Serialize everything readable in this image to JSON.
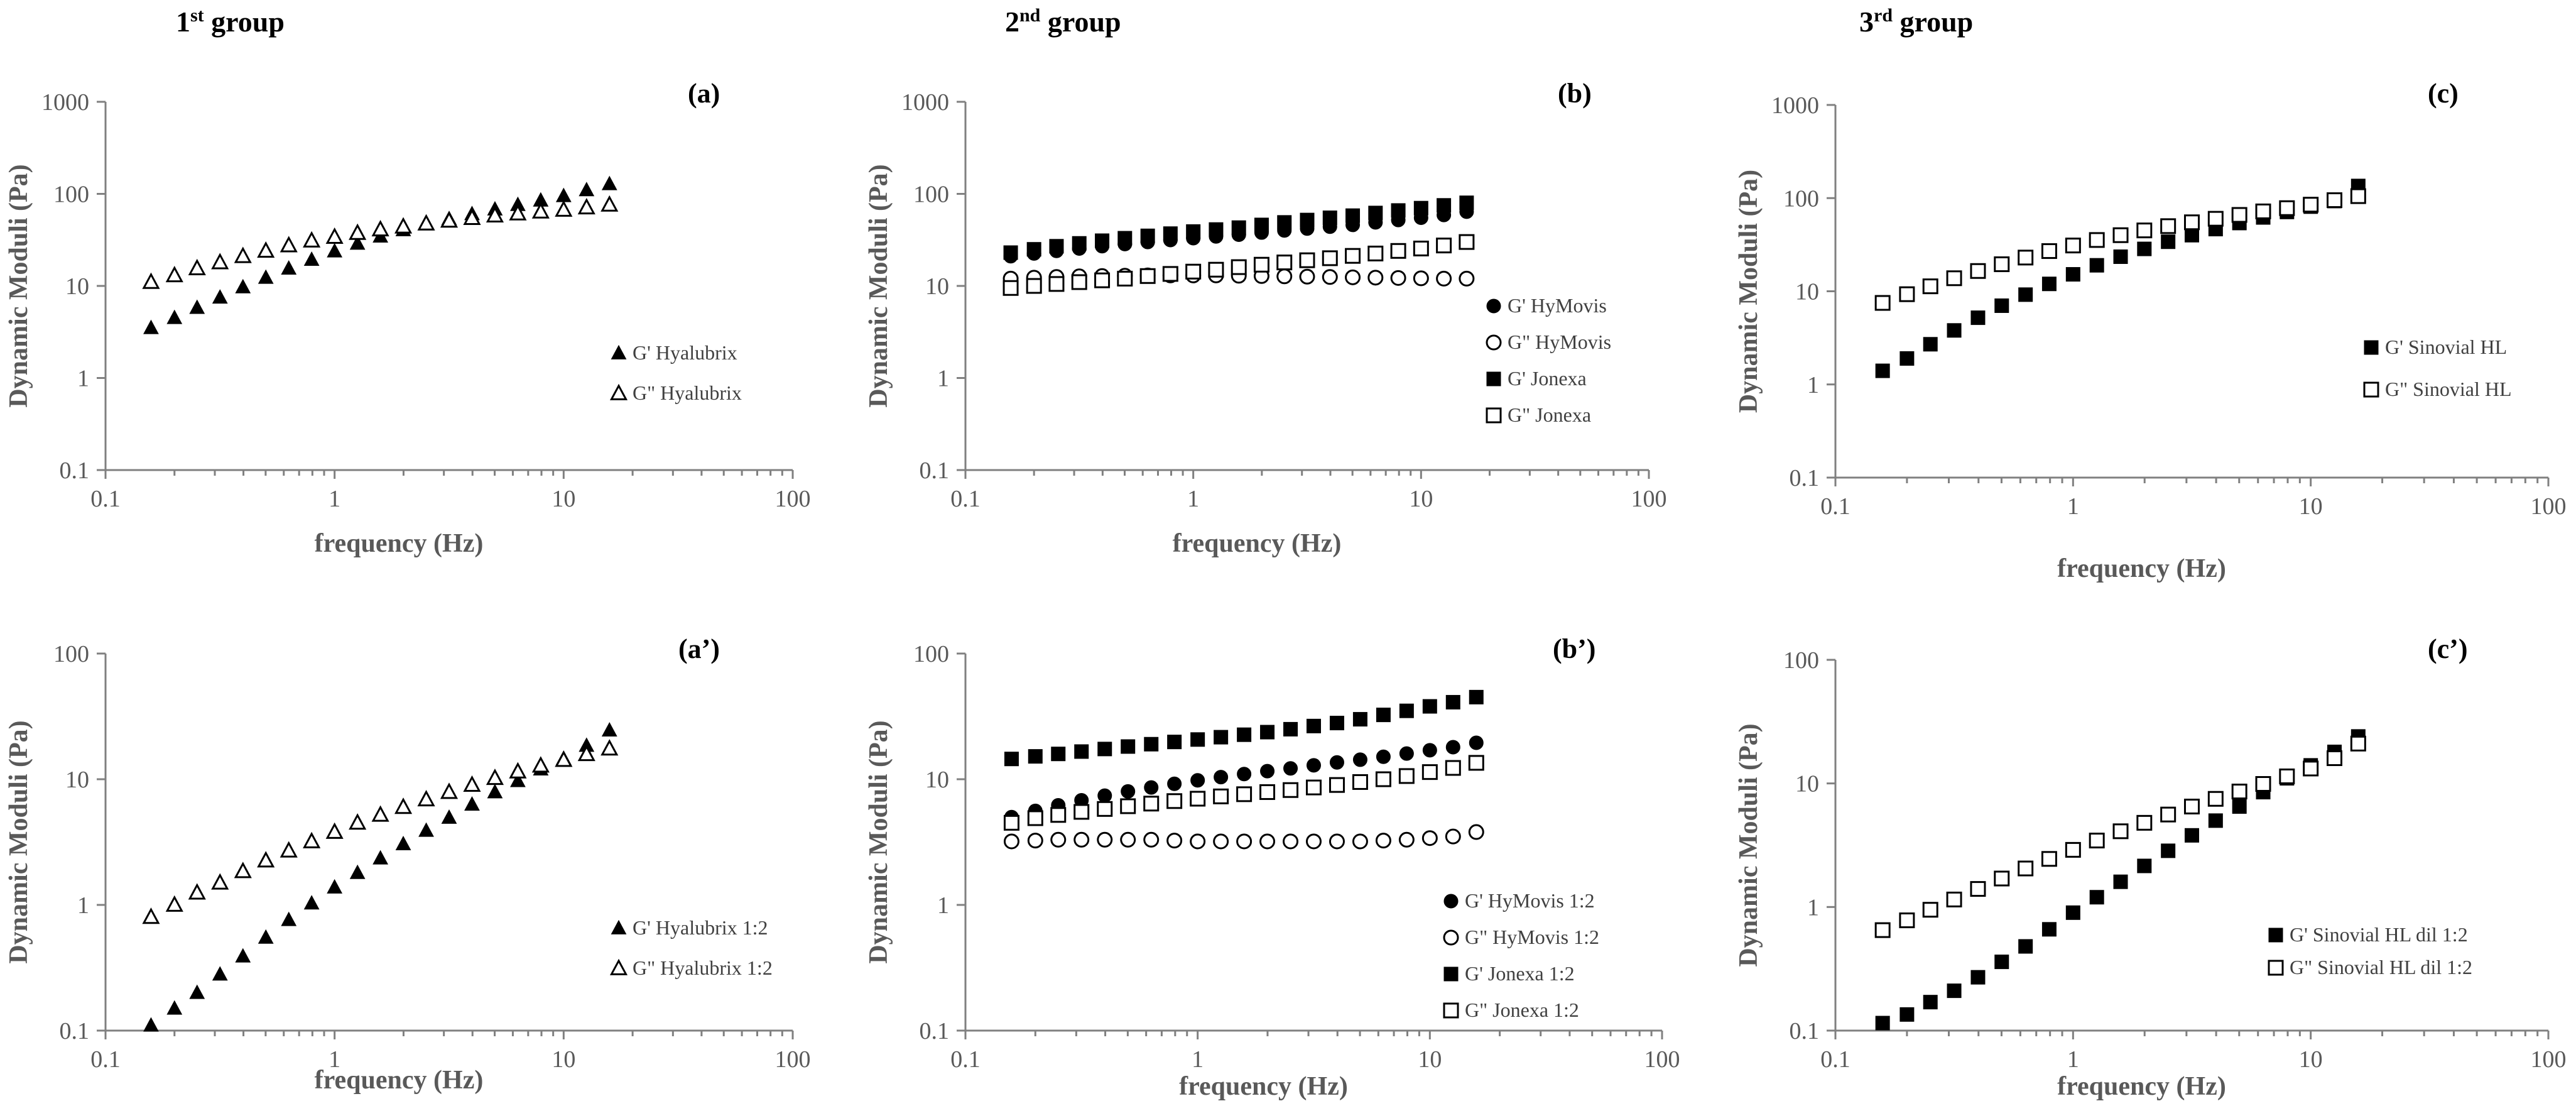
{
  "group_titles": [
    {
      "base": "1",
      "sup": "st",
      "rest": " group"
    },
    {
      "base": "2",
      "sup": "nd",
      "rest": " group"
    },
    {
      "base": "3",
      "sup": "rd",
      "rest": " group"
    }
  ],
  "chart_data": [
    {
      "type": "scatter",
      "panel_label": "(a)",
      "xlabel": "frequency (Hz)",
      "ylabel": "Dynamic Moduli (Pa)",
      "xscale": "log",
      "yscale": "log",
      "xlim": [
        0.1,
        100
      ],
      "ylim": [
        0.1,
        1000
      ],
      "xticks": [
        "0.1",
        "1",
        "10",
        "100"
      ],
      "yticks": [
        "0.1",
        "1",
        "10",
        "100",
        "1000"
      ],
      "legend_position": "right-middle",
      "x": [
        0.158,
        0.2,
        0.251,
        0.316,
        0.398,
        0.501,
        0.631,
        0.794,
        1.0,
        1.259,
        1.585,
        1.995,
        2.512,
        3.162,
        3.981,
        5.012,
        6.31,
        7.943,
        10.0,
        12.589,
        15.849
      ],
      "series": [
        {
          "name": "G' Hyalubrix",
          "marker": "triangle-filled",
          "values": [
            3.5,
            4.5,
            5.8,
            7.5,
            9.7,
            12.3,
            15.5,
            19.3,
            23.8,
            28.9,
            34.5,
            40.5,
            46.8,
            53.5,
            60.5,
            68,
            76,
            85,
            95,
            110,
            128
          ]
        },
        {
          "name": "G\" Hyalubrix",
          "marker": "triangle-open",
          "values": [
            11,
            13,
            15.5,
            18,
            21,
            24,
            27.5,
            31,
            34,
            37.5,
            41,
            44,
            47.5,
            51,
            54.5,
            58,
            61,
            64,
            67,
            71,
            76
          ]
        }
      ]
    },
    {
      "type": "scatter",
      "panel_label": "(b)",
      "xlabel": "frequency (Hz)",
      "ylabel": "Dynamic Moduli (Pa)",
      "xscale": "log",
      "yscale": "log",
      "xlim": [
        0.1,
        100
      ],
      "ylim": [
        0.1,
        1000
      ],
      "xticks": [
        "0.1",
        "1",
        "10",
        "100"
      ],
      "yticks": [
        "0.1",
        "1",
        "10",
        "100",
        "1000"
      ],
      "legend_position": "right-bottom",
      "x": [
        0.158,
        0.2,
        0.251,
        0.316,
        0.398,
        0.501,
        0.631,
        0.794,
        1.0,
        1.259,
        1.585,
        1.995,
        2.512,
        3.162,
        3.981,
        5.012,
        6.31,
        7.943,
        10.0,
        12.589,
        15.849
      ],
      "series": [
        {
          "name": "G' HyMovis",
          "marker": "circle-filled",
          "values": [
            21,
            22.5,
            24,
            25.5,
            27,
            28.5,
            30,
            31.5,
            33,
            34.5,
            36,
            38,
            40,
            42,
            44,
            46,
            49,
            52,
            55,
            59,
            64
          ]
        },
        {
          "name": "G\" HyMovis",
          "marker": "circle-open",
          "values": [
            12,
            12.3,
            12.5,
            12.7,
            12.8,
            12.9,
            13,
            13,
            13,
            13,
            12.9,
            12.8,
            12.7,
            12.6,
            12.5,
            12.4,
            12.3,
            12.2,
            12.1,
            12,
            12
          ]
        },
        {
          "name": "G' Jonexa",
          "marker": "square-filled",
          "values": [
            23,
            25,
            27,
            29,
            31,
            33,
            35,
            37,
            39,
            41,
            43,
            46,
            49,
            52,
            55,
            58,
            62,
            66,
            70,
            75,
            80
          ]
        },
        {
          "name": "G\" Jonexa",
          "marker": "square-open",
          "values": [
            9.5,
            10,
            10.5,
            11,
            11.5,
            12,
            12.8,
            13.5,
            14.3,
            15,
            16,
            17,
            18,
            19,
            20,
            21.2,
            22.5,
            24,
            25.5,
            27.5,
            30
          ]
        }
      ]
    },
    {
      "type": "scatter",
      "panel_label": "(c)",
      "xlabel": "frequency (Hz)",
      "ylabel": "Dynamic Moduli (Pa)",
      "xscale": "log",
      "yscale": "log",
      "xlim": [
        0.1,
        100
      ],
      "ylim": [
        0.1,
        1000
      ],
      "xticks": [
        "0.1",
        "1",
        "10",
        "100"
      ],
      "yticks": [
        "0.1",
        "1",
        "10",
        "100",
        "1000"
      ],
      "legend_position": "right-middle",
      "x": [
        0.158,
        0.2,
        0.251,
        0.316,
        0.398,
        0.501,
        0.631,
        0.794,
        1.0,
        1.259,
        1.585,
        1.995,
        2.512,
        3.162,
        3.981,
        5.012,
        6.31,
        7.943,
        10.0,
        12.589,
        15.849
      ],
      "series": [
        {
          "name": "G' Sinovial HL",
          "marker": "square-filled",
          "values": [
            1.4,
            1.9,
            2.7,
            3.8,
            5.2,
            7,
            9.2,
            12,
            15.2,
            19,
            23.5,
            28.5,
            34,
            40,
            46.5,
            54,
            62,
            71,
            81,
            93,
            135
          ]
        },
        {
          "name": "G\" Sinovial HL",
          "marker": "square-open",
          "values": [
            7.5,
            9.3,
            11.3,
            13.8,
            16.5,
            19.5,
            23,
            27,
            31,
            35.5,
            40,
            45,
            50,
            55,
            60,
            66,
            72,
            78,
            85,
            95,
            105
          ]
        }
      ]
    },
    {
      "type": "scatter",
      "panel_label": "(a’)",
      "xlabel": "frequency (Hz)",
      "ylabel": "Dynamic Moduli (Pa)",
      "xscale": "log",
      "yscale": "log",
      "xlim": [
        0.1,
        100
      ],
      "ylim": [
        0.1,
        100
      ],
      "xticks": [
        "0.1",
        "1",
        "10",
        "100"
      ],
      "yticks": [
        "0.1",
        "1",
        "10",
        "100"
      ],
      "legend_position": "right-bottom",
      "x": [
        0.158,
        0.2,
        0.251,
        0.316,
        0.398,
        0.501,
        0.631,
        0.794,
        1.0,
        1.259,
        1.585,
        1.995,
        2.512,
        3.162,
        3.981,
        5.012,
        6.31,
        7.943,
        10.0,
        12.589,
        15.849
      ],
      "series": [
        {
          "name": "G' Hyalubrix 1:2",
          "marker": "triangle-filled",
          "values": [
            0.11,
            0.15,
            0.2,
            0.28,
            0.39,
            0.55,
            0.76,
            1.03,
            1.38,
            1.8,
            2.35,
            3.05,
            3.9,
            4.95,
            6.3,
            7.9,
            9.7,
            12,
            14.6,
            18.5,
            24.5
          ]
        },
        {
          "name": "G\" Hyalubrix 1:2",
          "marker": "triangle-open",
          "values": [
            0.8,
            1.0,
            1.25,
            1.5,
            1.85,
            2.25,
            2.7,
            3.2,
            3.8,
            4.5,
            5.2,
            6.0,
            6.9,
            7.9,
            9.0,
            10.2,
            11.5,
            12.8,
            14.2,
            15.8,
            17.5
          ]
        }
      ]
    },
    {
      "type": "scatter",
      "panel_label": "(b’)",
      "xlabel": "frequency (Hz)",
      "ylabel": "Dynamic Moduli (Pa)",
      "xscale": "log",
      "yscale": "log",
      "xlim": [
        0.1,
        100
      ],
      "ylim": [
        0.1,
        100
      ],
      "xticks": [
        "0.1",
        "1",
        "10",
        "100"
      ],
      "yticks": [
        "0.1",
        "1",
        "10",
        "100"
      ],
      "legend_position": "right-bottom",
      "x": [
        0.158,
        0.2,
        0.251,
        0.316,
        0.398,
        0.501,
        0.631,
        0.794,
        1.0,
        1.259,
        1.585,
        1.995,
        2.512,
        3.162,
        3.981,
        5.012,
        6.31,
        7.943,
        10.0,
        12.589,
        15.849
      ],
      "series": [
        {
          "name": "G' HyMovis 1:2",
          "marker": "circle-filled",
          "values": [
            5,
            5.6,
            6.2,
            6.8,
            7.4,
            8,
            8.6,
            9.2,
            9.8,
            10.4,
            11,
            11.6,
            12.2,
            12.9,
            13.6,
            14.3,
            15.1,
            16,
            17,
            18,
            19.5
          ]
        },
        {
          "name": "G\" HyMovis 1:2",
          "marker": "circle-open",
          "values": [
            3.2,
            3.25,
            3.3,
            3.3,
            3.3,
            3.3,
            3.3,
            3.25,
            3.2,
            3.2,
            3.2,
            3.2,
            3.2,
            3.2,
            3.2,
            3.2,
            3.25,
            3.3,
            3.4,
            3.5,
            3.8
          ]
        },
        {
          "name": "G' Jonexa 1:2",
          "marker": "square-filled",
          "values": [
            14.5,
            15.2,
            15.9,
            16.6,
            17.4,
            18.2,
            19,
            19.8,
            20.7,
            21.6,
            22.6,
            23.7,
            25,
            26.5,
            28,
            30,
            32.5,
            35,
            38,
            41,
            45
          ]
        },
        {
          "name": "G\" Jonexa 1:2",
          "marker": "square-open",
          "values": [
            4.5,
            4.9,
            5.2,
            5.5,
            5.8,
            6.1,
            6.4,
            6.7,
            7,
            7.3,
            7.6,
            7.9,
            8.2,
            8.6,
            9,
            9.5,
            10,
            10.6,
            11.4,
            12.3,
            13.5
          ]
        }
      ]
    },
    {
      "type": "scatter",
      "panel_label": "(c’)",
      "xlabel": "frequency (Hz)",
      "ylabel": "Dynamic Moduli (Pa)",
      "xscale": "log",
      "yscale": "log",
      "xlim": [
        0.1,
        100
      ],
      "ylim": [
        0.1,
        100
      ],
      "xticks": [
        "0.1",
        "1",
        "10",
        "100"
      ],
      "yticks": [
        "0.1",
        "1",
        "10",
        "100"
      ],
      "legend_position": "right-bottom",
      "x": [
        0.158,
        0.2,
        0.251,
        0.316,
        0.398,
        0.501,
        0.631,
        0.794,
        1.0,
        1.259,
        1.585,
        1.995,
        2.512,
        3.162,
        3.981,
        5.012,
        6.31,
        7.943,
        10.0,
        12.589,
        15.849
      ],
      "series": [
        {
          "name": "G' Sinovial HL dil 1:2",
          "marker": "square-filled",
          "values": [
            0.115,
            0.135,
            0.17,
            0.21,
            0.27,
            0.36,
            0.48,
            0.66,
            0.9,
            1.2,
            1.6,
            2.15,
            2.85,
            3.8,
            5.0,
            6.5,
            8.5,
            11,
            14,
            18,
            24
          ]
        },
        {
          "name": "G\" Sinovial HL dil 1:2",
          "marker": "square-open",
          "values": [
            0.65,
            0.78,
            0.95,
            1.15,
            1.4,
            1.7,
            2.05,
            2.45,
            2.9,
            3.45,
            4.1,
            4.8,
            5.6,
            6.5,
            7.5,
            8.6,
            9.9,
            11.4,
            13.2,
            16,
            21
          ]
        }
      ]
    }
  ]
}
